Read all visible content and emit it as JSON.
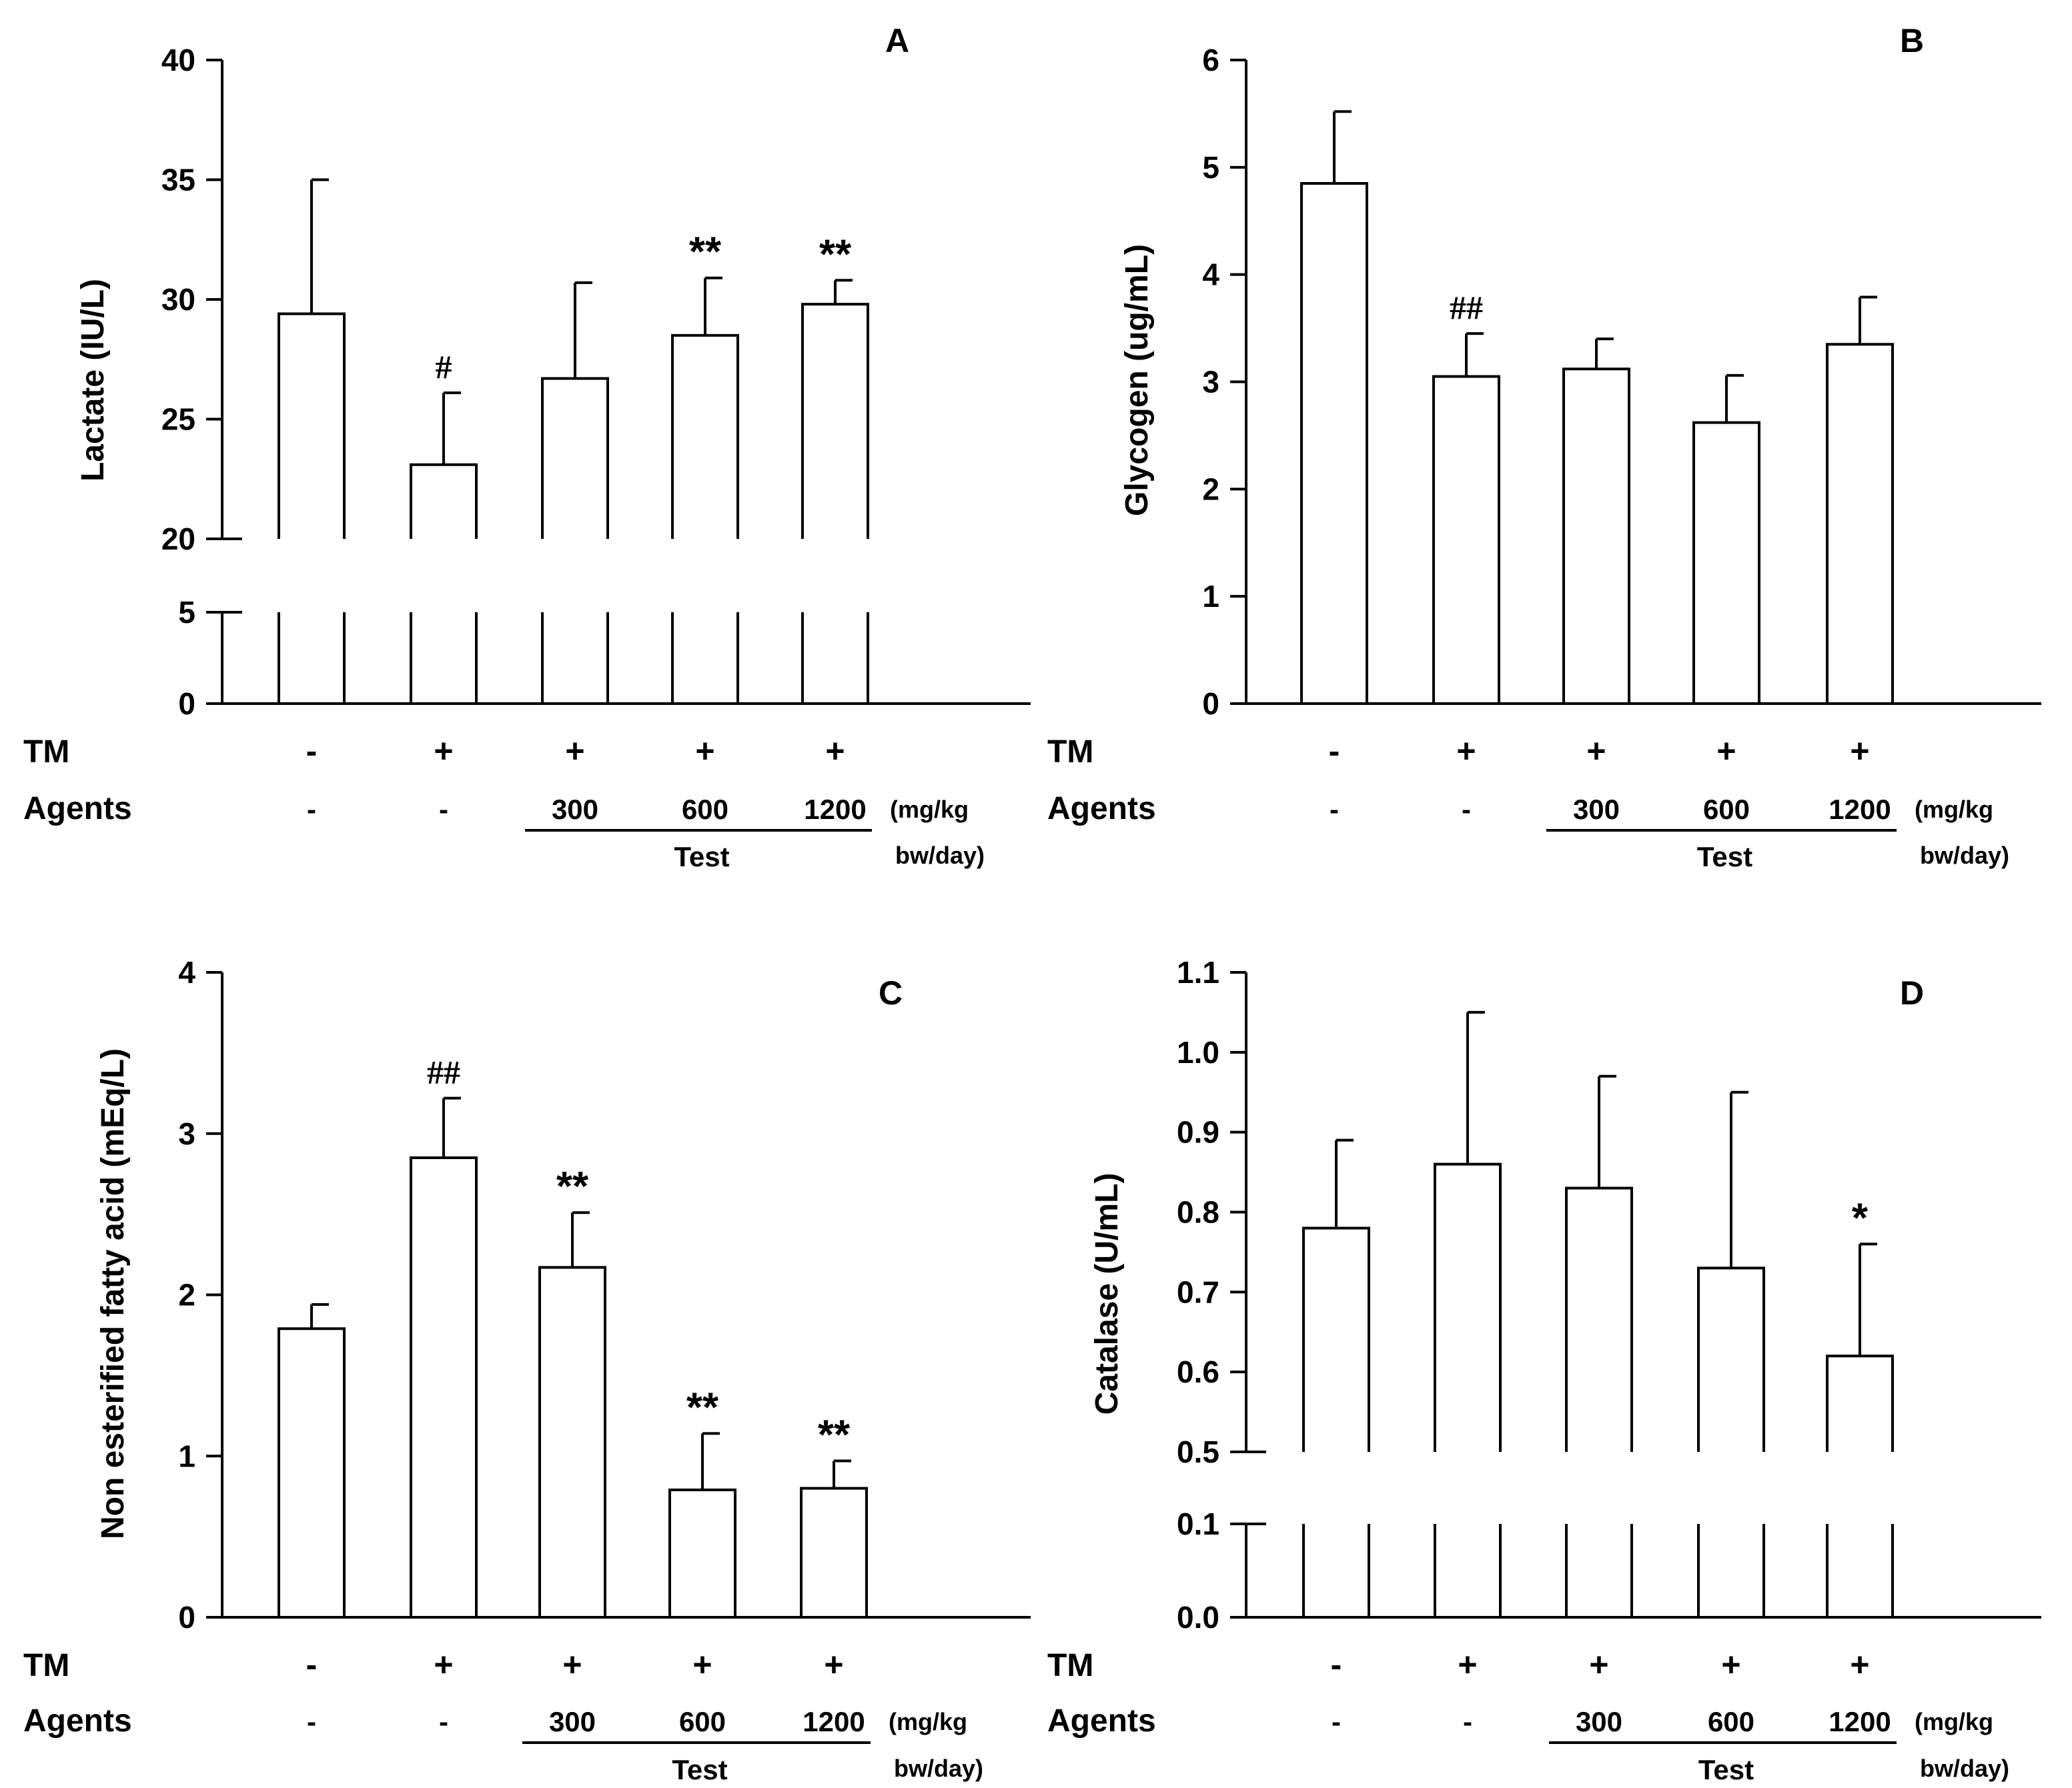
{
  "chart_data": [
    {
      "type": "bar",
      "panel_label": "A",
      "ylabel": "Lactate (IU/L)",
      "ylim": [
        0,
        40
      ],
      "axis_break": {
        "low": [
          0,
          5
        ],
        "high": [
          20,
          40
        ]
      },
      "yticks": [
        {
          "value": 0,
          "label": "0"
        },
        {
          "value": 5,
          "label": "5"
        },
        {
          "value": 20,
          "label": "20"
        },
        {
          "value": 25,
          "label": "25"
        },
        {
          "value": 30,
          "label": "30"
        },
        {
          "value": 35,
          "label": "35"
        },
        {
          "value": 40,
          "label": "40"
        }
      ],
      "values": [
        29.4,
        23.1,
        26.7,
        28.5,
        29.8
      ],
      "errors": [
        5.6,
        3.0,
        4.0,
        2.4,
        1.0
      ],
      "annotations": [
        "",
        "#",
        "",
        "**",
        "**"
      ],
      "tm": [
        "-",
        "+",
        "+",
        "+",
        "+"
      ],
      "agents": [
        "-",
        "-",
        "300",
        "600",
        "1200"
      ]
    },
    {
      "type": "bar",
      "panel_label": "B",
      "ylabel": "Glycogen (ug/mL)",
      "ylim": [
        0,
        6
      ],
      "axis_break": null,
      "yticks": [
        {
          "value": 0,
          "label": "0"
        },
        {
          "value": 1,
          "label": "1"
        },
        {
          "value": 2,
          "label": "2"
        },
        {
          "value": 3,
          "label": "3"
        },
        {
          "value": 4,
          "label": "4"
        },
        {
          "value": 5,
          "label": "5"
        },
        {
          "value": 6,
          "label": "6"
        }
      ],
      "values": [
        4.85,
        3.05,
        3.12,
        2.62,
        3.35
      ],
      "errors": [
        0.67,
        0.4,
        0.28,
        0.44,
        0.44
      ],
      "annotations": [
        "",
        "##",
        "",
        "",
        ""
      ],
      "tm": [
        "-",
        "+",
        "+",
        "+",
        "+"
      ],
      "agents": [
        "-",
        "-",
        "300",
        "600",
        "1200"
      ]
    },
    {
      "type": "bar",
      "panel_label": "C",
      "ylabel": "Non esterified fatty acid (mEq/L)",
      "ylim": [
        0,
        4
      ],
      "axis_break": null,
      "yticks": [
        {
          "value": 0,
          "label": "0"
        },
        {
          "value": 1,
          "label": "1"
        },
        {
          "value": 2,
          "label": "2"
        },
        {
          "value": 3,
          "label": "3"
        },
        {
          "value": 4,
          "label": "4"
        }
      ],
      "values": [
        1.79,
        2.85,
        2.17,
        0.79,
        0.8
      ],
      "errors": [
        0.15,
        0.37,
        0.34,
        0.35,
        0.17
      ],
      "annotations": [
        "",
        "##",
        "**",
        "**",
        "**"
      ],
      "tm": [
        "-",
        "+",
        "+",
        "+",
        "+"
      ],
      "agents": [
        "-",
        "-",
        "300",
        "600",
        "1200"
      ]
    },
    {
      "type": "bar",
      "panel_label": "D",
      "ylabel": "Catalase (U/mL)",
      "ylim": [
        0,
        1.1
      ],
      "axis_break": {
        "low": [
          0,
          0.1
        ],
        "high": [
          0.5,
          1.1
        ]
      },
      "yticks": [
        {
          "value": 0,
          "label": "0.0"
        },
        {
          "value": 0.1,
          "label": "0.1"
        },
        {
          "value": 0.5,
          "label": "0.5"
        },
        {
          "value": 0.6,
          "label": "0.6"
        },
        {
          "value": 0.7,
          "label": "0.7"
        },
        {
          "value": 0.8,
          "label": "0.8"
        },
        {
          "value": 0.9,
          "label": "0.9"
        },
        {
          "value": 1.0,
          "label": "1.0"
        },
        {
          "value": 1.1,
          "label": "1.1"
        }
      ],
      "values": [
        0.78,
        0.86,
        0.83,
        0.73,
        0.62
      ],
      "errors": [
        0.11,
        0.19,
        0.14,
        0.22,
        0.14
      ],
      "annotations": [
        "",
        "",
        "",
        "",
        "*"
      ],
      "tm": [
        "-",
        "+",
        "+",
        "+",
        "+"
      ],
      "agents": [
        "-",
        "-",
        "300",
        "600",
        "1200"
      ]
    }
  ],
  "labels": {
    "tm": "TM",
    "agents": "Agents",
    "unit_line1": "(mg/kg",
    "unit_line2": "bw/day)",
    "test": "Test"
  }
}
